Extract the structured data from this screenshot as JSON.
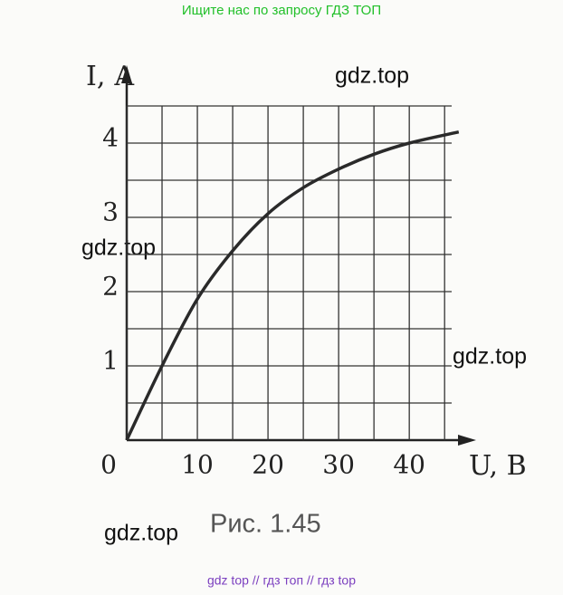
{
  "header": "Ищите нас по запросу ГДЗ ТОП",
  "watermarks": [
    "gdz.top",
    "gdz.top",
    "gdz.top",
    "gdz.top"
  ],
  "caption": "Рис. 1.45",
  "footer": "gdz top  //  гдз топ  //  гдз top",
  "chart_data": {
    "type": "line",
    "x_label": "U, В",
    "y_label": "I, А",
    "x": [
      0,
      5,
      10,
      15,
      20,
      25,
      30,
      35,
      40,
      47
    ],
    "values": [
      0,
      1,
      1.9,
      2.55,
      3.05,
      3.4,
      3.65,
      3.85,
      4.0,
      4.15
    ],
    "color": "#2a2a2a",
    "xlim": [
      0,
      46
    ],
    "ylim": [
      0,
      4.5
    ],
    "xticks": [
      0,
      10,
      20,
      30,
      40
    ],
    "yticks": [
      0,
      1,
      2,
      3,
      4
    ],
    "xminor": [
      5,
      15,
      25,
      35,
      45
    ],
    "yminor": [
      0.5,
      1.5,
      2.5,
      3.5,
      4.5
    ],
    "grid": true
  }
}
